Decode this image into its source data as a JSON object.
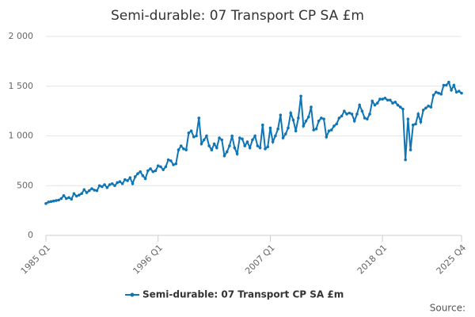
{
  "chart_data": {
    "type": "line",
    "title": "Semi-durable: 07 Transport CP SA £m",
    "source": "Source:",
    "categories": [
      "1985 Q1",
      null,
      null,
      null,
      null,
      null,
      null,
      null,
      null,
      null,
      null,
      null,
      null,
      null,
      null,
      null,
      null,
      null,
      null,
      null,
      null,
      null,
      null,
      null,
      null,
      null,
      null,
      null,
      null,
      null,
      null,
      null,
      null,
      null,
      null,
      null,
      null,
      null,
      null,
      null,
      null,
      null,
      null,
      null,
      "1996 Q1",
      null,
      null,
      null,
      null,
      null,
      null,
      null,
      null,
      null,
      null,
      null,
      null,
      null,
      null,
      null,
      null,
      null,
      null,
      null,
      null,
      null,
      null,
      null,
      null,
      null,
      null,
      null,
      null,
      null,
      null,
      null,
      null,
      null,
      null,
      null,
      null,
      null,
      null,
      null,
      null,
      null,
      null,
      null,
      "2007 Q1",
      null,
      null,
      null,
      null,
      null,
      null,
      null,
      null,
      null,
      null,
      null,
      null,
      null,
      null,
      null,
      null,
      null,
      null,
      null,
      null,
      null,
      null,
      null,
      null,
      null,
      null,
      null,
      null,
      null,
      null,
      null,
      null,
      null,
      null,
      null,
      null,
      null,
      null,
      null,
      null,
      null,
      null,
      null,
      "2018 Q1",
      null,
      null,
      null,
      null,
      null,
      null,
      null,
      null,
      null,
      null,
      null,
      null,
      null,
      null,
      null,
      null,
      null,
      null,
      null,
      null,
      null,
      null,
      null,
      null,
      null,
      null,
      null,
      null,
      null,
      null,
      "2025 Q4"
    ],
    "series": [
      {
        "name": "Semi-durable: 07 Transport CP SA £m",
        "color": "#0f75b4",
        "values": [
          320,
          335,
          340,
          345,
          350,
          355,
          370,
          400,
          370,
          380,
          365,
          420,
          395,
          405,
          420,
          460,
          430,
          450,
          470,
          455,
          450,
          500,
          490,
          510,
          480,
          510,
          520,
          500,
          530,
          540,
          520,
          560,
          550,
          580,
          520,
          590,
          620,
          640,
          600,
          570,
          650,
          670,
          640,
          650,
          700,
          690,
          660,
          690,
          760,
          750,
          710,
          720,
          860,
          900,
          870,
          860,
          1030,
          1050,
          990,
          1000,
          1180,
          920,
          960,
          1000,
          900,
          860,
          920,
          880,
          980,
          960,
          800,
          840,
          900,
          1000,
          880,
          820,
          980,
          970,
          900,
          940,
          880,
          960,
          1000,
          900,
          880,
          1110,
          870,
          890,
          1080,
          940,
          1000,
          1070,
          1210,
          980,
          1020,
          1080,
          1230,
          1160,
          1050,
          1180,
          1400,
          1100,
          1150,
          1190,
          1290,
          1060,
          1070,
          1150,
          1180,
          1170,
          990,
          1050,
          1060,
          1100,
          1120,
          1180,
          1200,
          1250,
          1220,
          1230,
          1220,
          1150,
          1220,
          1310,
          1250,
          1180,
          1170,
          1220,
          1350,
          1310,
          1330,
          1370,
          1370,
          1380,
          1360,
          1360,
          1330,
          1340,
          1310,
          1290,
          1270,
          760,
          1170,
          860,
          1110,
          1120,
          1220,
          1140,
          1260,
          1280,
          1300,
          1290,
          1410,
          1440,
          1430,
          1420,
          1510,
          1510,
          1540,
          1460,
          1510,
          1440,
          1450,
          1430
        ]
      }
    ],
    "ylim": [
      0,
      2000
    ],
    "yticks": [
      0,
      500,
      {
        "value": 1000,
        "label": "1 000"
      },
      {
        "value": 1500,
        "label": "1 500"
      },
      {
        "value": 2000,
        "label": "2 000"
      }
    ],
    "grid": true
  }
}
